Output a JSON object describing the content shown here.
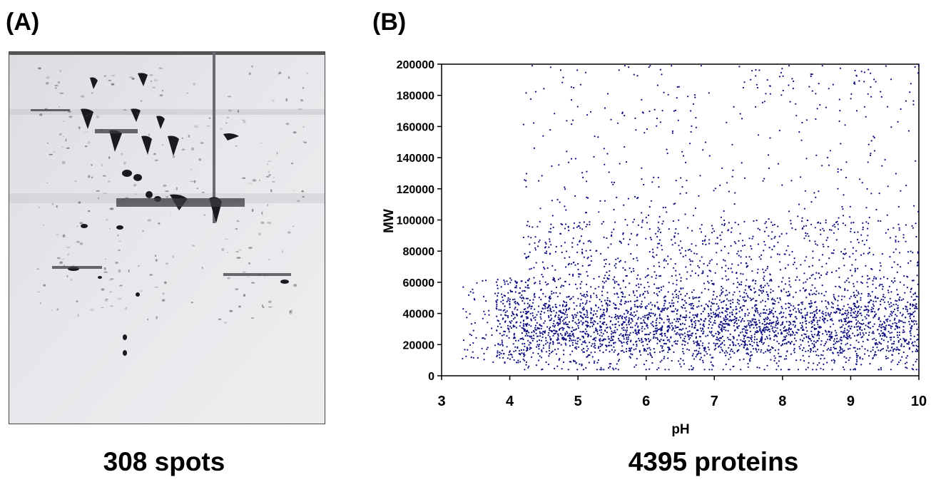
{
  "panels": {
    "a": {
      "label": "(A)",
      "caption": "308 spots"
    },
    "b": {
      "label": "(B)",
      "caption": "4395 proteins"
    }
  },
  "chart_data": {
    "type": "scatter",
    "xlabel": "pH",
    "ylabel": "MW",
    "xlim": [
      3,
      10
    ],
    "ylim": [
      0,
      200000
    ],
    "xticks": [
      3,
      4,
      5,
      6,
      7,
      8,
      9,
      10
    ],
    "yticks": [
      0,
      20000,
      40000,
      60000,
      80000,
      100000,
      120000,
      140000,
      160000,
      180000,
      200000
    ],
    "point_count": 4395,
    "point_color": "#0b0b80",
    "grid": false,
    "legend": "none"
  }
}
